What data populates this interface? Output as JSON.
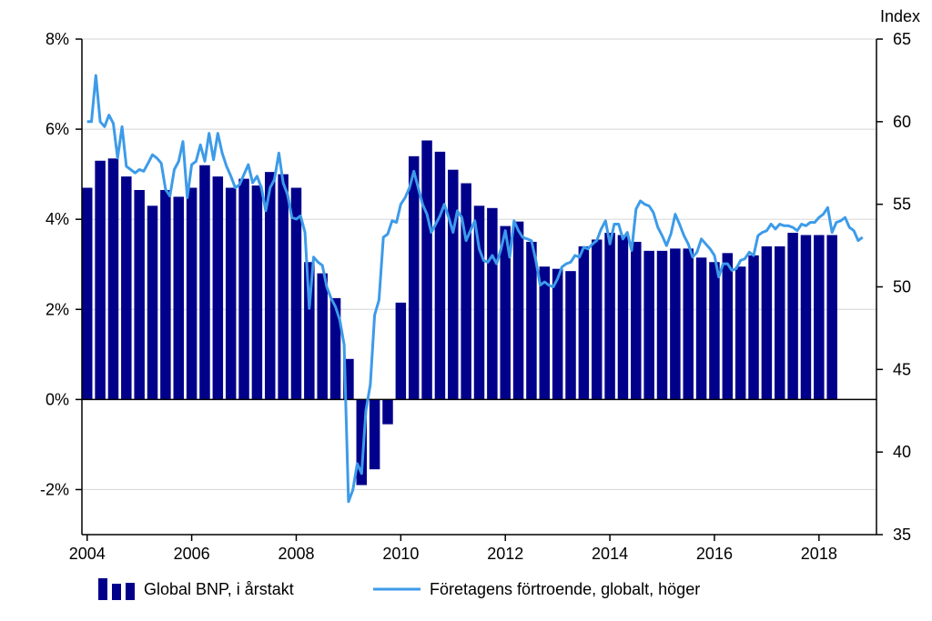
{
  "chart_data": {
    "type": "bar+line",
    "title": "",
    "left_axis": {
      "ticks": [
        -2,
        0,
        2,
        4,
        6,
        8
      ],
      "tick_labels": [
        "-2%",
        "0%",
        "2%",
        "4%",
        "6%",
        "8%"
      ],
      "range": [
        -3,
        8
      ]
    },
    "right_axis": {
      "label": "Index",
      "ticks": [
        35,
        40,
        45,
        50,
        55,
        60,
        65
      ],
      "tick_labels": [
        "35",
        "40",
        "45",
        "50",
        "55",
        "60",
        "65"
      ],
      "range": [
        35,
        65
      ]
    },
    "x_axis": {
      "ticks": [
        2004,
        2006,
        2008,
        2010,
        2012,
        2014,
        2016,
        2018
      ],
      "tick_labels": [
        "2004",
        "2006",
        "2008",
        "2010",
        "2012",
        "2014",
        "2016",
        "2018"
      ],
      "range": [
        2003.9,
        2019.1
      ]
    },
    "grid": true,
    "colors": {
      "bars": "#00008b",
      "line": "#3d9be9"
    },
    "legend_position": "bottom",
    "series": [
      {
        "name": "Global BNP, i årstakt",
        "type": "bar",
        "x": [
          2004.0,
          2004.25,
          2004.5,
          2004.75,
          2005.0,
          2005.25,
          2005.5,
          2005.75,
          2006.0,
          2006.25,
          2006.5,
          2006.75,
          2007.0,
          2007.25,
          2007.5,
          2007.75,
          2008.0,
          2008.25,
          2008.5,
          2008.75,
          2009.0,
          2009.25,
          2009.5,
          2009.75,
          2010.0,
          2010.25,
          2010.5,
          2010.75,
          2011.0,
          2011.25,
          2011.5,
          2011.75,
          2012.0,
          2012.25,
          2012.5,
          2012.75,
          2013.0,
          2013.25,
          2013.5,
          2013.75,
          2014.0,
          2014.25,
          2014.5,
          2014.75,
          2015.0,
          2015.25,
          2015.5,
          2015.75,
          2016.0,
          2016.25,
          2016.5,
          2016.75,
          2017.0,
          2017.25,
          2017.5,
          2017.75,
          2018.0,
          2018.25
        ],
        "values": [
          4.7,
          5.3,
          5.35,
          4.95,
          4.65,
          4.3,
          4.65,
          4.5,
          4.7,
          5.2,
          4.95,
          4.7,
          4.9,
          4.75,
          5.05,
          5.0,
          4.7,
          3.05,
          2.8,
          2.25,
          0.9,
          -1.9,
          -1.55,
          -0.55,
          2.15,
          5.4,
          5.75,
          5.5,
          5.1,
          4.8,
          4.3,
          4.25,
          3.85,
          3.95,
          3.5,
          2.95,
          2.9,
          2.85,
          3.4,
          3.55,
          3.7,
          3.65,
          3.5,
          3.3,
          3.3,
          3.35,
          3.35,
          3.15,
          3.05,
          3.25,
          2.95,
          3.2,
          3.4,
          3.4,
          3.7,
          3.65,
          3.65,
          3.65
        ]
      },
      {
        "name": "Företagens förtroende, globalt, höger",
        "type": "line",
        "axis": "right",
        "x": [
          2004.0,
          2004.083,
          2004.167,
          2004.25,
          2004.333,
          2004.417,
          2004.5,
          2004.583,
          2004.667,
          2004.75,
          2004.833,
          2004.917,
          2005.0,
          2005.083,
          2005.167,
          2005.25,
          2005.333,
          2005.417,
          2005.5,
          2005.583,
          2005.667,
          2005.75,
          2005.833,
          2005.917,
          2006.0,
          2006.083,
          2006.167,
          2006.25,
          2006.333,
          2006.417,
          2006.5,
          2006.583,
          2006.667,
          2006.75,
          2006.833,
          2006.917,
          2007.0,
          2007.083,
          2007.167,
          2007.25,
          2007.333,
          2007.417,
          2007.5,
          2007.583,
          2007.667,
          2007.75,
          2007.833,
          2007.917,
          2008.0,
          2008.083,
          2008.167,
          2008.25,
          2008.333,
          2008.417,
          2008.5,
          2008.583,
          2008.667,
          2008.75,
          2008.833,
          2008.917,
          2009.0,
          2009.083,
          2009.167,
          2009.25,
          2009.333,
          2009.417,
          2009.5,
          2009.583,
          2009.667,
          2009.75,
          2009.833,
          2009.917,
          2010.0,
          2010.083,
          2010.167,
          2010.25,
          2010.333,
          2010.417,
          2010.5,
          2010.583,
          2010.667,
          2010.75,
          2010.833,
          2010.917,
          2011.0,
          2011.083,
          2011.167,
          2011.25,
          2011.333,
          2011.417,
          2011.5,
          2011.583,
          2011.667,
          2011.75,
          2011.833,
          2011.917,
          2012.0,
          2012.083,
          2012.167,
          2012.25,
          2012.333,
          2012.417,
          2012.5,
          2012.583,
          2012.667,
          2012.75,
          2012.833,
          2012.917,
          2013.0,
          2013.083,
          2013.167,
          2013.25,
          2013.333,
          2013.417,
          2013.5,
          2013.583,
          2013.667,
          2013.75,
          2013.833,
          2013.917,
          2014.0,
          2014.083,
          2014.167,
          2014.25,
          2014.333,
          2014.417,
          2014.5,
          2014.583,
          2014.667,
          2014.75,
          2014.833,
          2014.917,
          2015.0,
          2015.083,
          2015.167,
          2015.25,
          2015.333,
          2015.417,
          2015.5,
          2015.583,
          2015.667,
          2015.75,
          2015.833,
          2015.917,
          2016.0,
          2016.083,
          2016.167,
          2016.25,
          2016.333,
          2016.417,
          2016.5,
          2016.583,
          2016.667,
          2016.75,
          2016.833,
          2016.917,
          2017.0,
          2017.083,
          2017.167,
          2017.25,
          2017.333,
          2017.417,
          2017.5,
          2017.583,
          2017.667,
          2017.75,
          2017.833,
          2017.917,
          2018.0,
          2018.083,
          2018.167,
          2018.25,
          2018.333,
          2018.417,
          2018.5,
          2018.583,
          2018.667,
          2018.75,
          2018.833
        ],
        "values": [
          60,
          60,
          62.8,
          60,
          59.7,
          60.4,
          59.9,
          57.8,
          59.7,
          57.3,
          57.1,
          56.9,
          57.1,
          57.0,
          57.5,
          58.0,
          57.8,
          57.5,
          55.9,
          55.5,
          57.1,
          57.6,
          58.8,
          55.4,
          57.4,
          57.6,
          58.6,
          57.6,
          59.3,
          57.7,
          59.3,
          58.1,
          57.3,
          56.7,
          56.0,
          56.2,
          56.8,
          57.4,
          56.3,
          56.7,
          56.0,
          54.6,
          56.0,
          56.5,
          58.1,
          56.3,
          55.6,
          54.2,
          54.1,
          54.3,
          53.3,
          48.7,
          51.8,
          51.5,
          51.3,
          50.0,
          49.3,
          48.8,
          48.0,
          46.5,
          37.0,
          37.7,
          39.3,
          38.7,
          42.5,
          44.1,
          48.3,
          49.2,
          53.0,
          53.2,
          54.0,
          53.9,
          55.0,
          55.4,
          56.0,
          57.0,
          56.0,
          55.0,
          54.4,
          53.3,
          53.8,
          54.3,
          55.0,
          54.2,
          53.3,
          54.6,
          54.2,
          52.8,
          53.4,
          54.0,
          52.3,
          51.6,
          51.5,
          51.9,
          51.4,
          52.3,
          53.4,
          51.8,
          54.0,
          53.4,
          53.0,
          52.9,
          52.8,
          51.6,
          50.1,
          50.3,
          50.1,
          50.0,
          50.5,
          51.2,
          51.4,
          51.5,
          51.9,
          51.8,
          52.4,
          52.3,
          52.6,
          52.8,
          53.5,
          54.0,
          52.6,
          53.8,
          53.8,
          52.9,
          53.3,
          52.2,
          54.7,
          55.2,
          55.0,
          54.9,
          54.5,
          53.6,
          53.1,
          52.5,
          53.2,
          54.4,
          53.8,
          53.1,
          52.6,
          51.8,
          52.1,
          52.9,
          52.6,
          52.3,
          51.9,
          50.6,
          51.4,
          51.4,
          51.0,
          51.1,
          51.6,
          51.7,
          52.1,
          51.9,
          53.1,
          53.3,
          53.4,
          53.8,
          53.5,
          53.8,
          53.7,
          53.7,
          53.6,
          53.4,
          53.8,
          53.7,
          53.9,
          53.9,
          54.2,
          54.4,
          54.8,
          53.3,
          53.9,
          54.0,
          54.2,
          53.6,
          53.4,
          52.8,
          53.0
        ]
      }
    ]
  }
}
